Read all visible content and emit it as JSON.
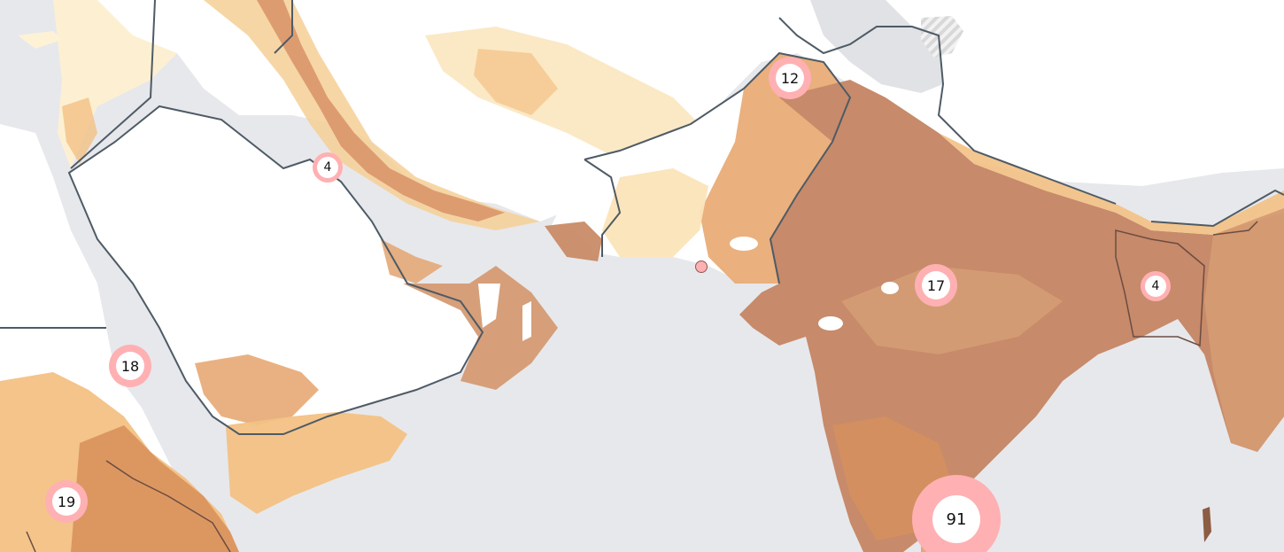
{
  "map": {
    "colors": {
      "sea": "#e7e8ec",
      "land_blank": "#ffffff",
      "land_outside": "#e1e2e5",
      "heat_low": "#fdf2d6",
      "heat_mid": "#f3c184",
      "heat_high": "#d8935e",
      "heat_core": "#c78a6a",
      "border": "#4e5b66",
      "cluster_ring": "#ffb0b3",
      "cluster_fill": "#ffffff"
    },
    "clusters": [
      {
        "name": "cluster-north-pakistan",
        "count": "12"
      },
      {
        "name": "cluster-kuwait",
        "count": "4"
      },
      {
        "name": "cluster-central-india",
        "count": "17"
      },
      {
        "name": "cluster-bangladesh",
        "count": "4"
      },
      {
        "name": "cluster-red-sea",
        "count": "18"
      },
      {
        "name": "cluster-ethiopia",
        "count": "19"
      },
      {
        "name": "cluster-sri-lanka",
        "count": "91"
      }
    ],
    "markers": [
      {
        "name": "marker-karachi"
      }
    ]
  }
}
